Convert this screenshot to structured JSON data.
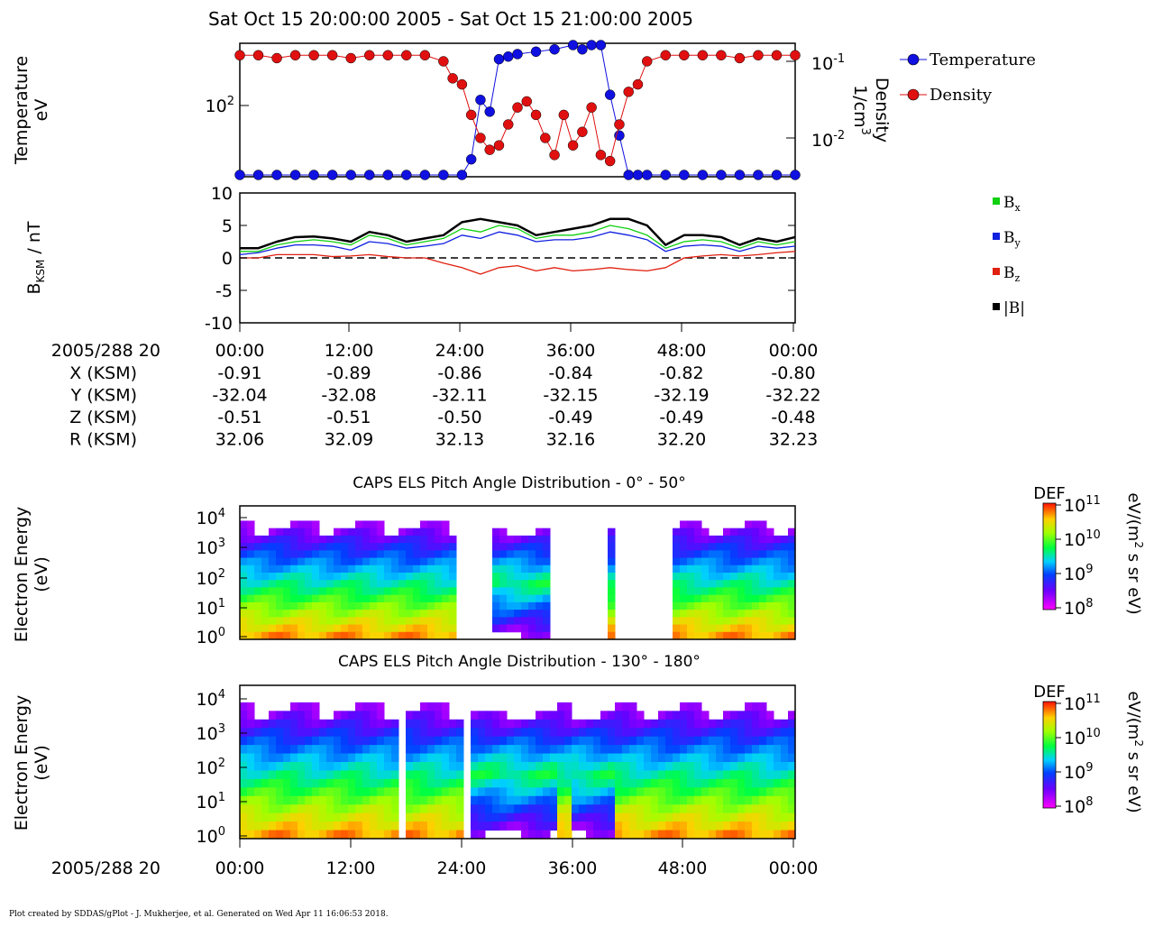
{
  "title": "Sat Oct 15 20:00:00 2005 - Sat Oct 15 21:00:00 2005",
  "footer": "Plot created by SDDAS/gPlot - J. Mukherjee, et al.  Generated on Wed Apr 11 16:06:53 2018.",
  "time_axis": {
    "label": "2005/288 20",
    "ticks": [
      "00:00",
      "12:00",
      "24:00",
      "36:00",
      "48:00",
      "00:00"
    ]
  },
  "ephemeris": [
    {
      "label": "X (KSM)",
      "values": [
        "-0.91",
        "-0.89",
        "-0.86",
        "-0.84",
        "-0.82",
        "-0.80"
      ]
    },
    {
      "label": "Y (KSM)",
      "values": [
        "-32.04",
        "-32.08",
        "-32.11",
        "-32.15",
        "-32.19",
        "-32.22"
      ]
    },
    {
      "label": "Z (KSM)",
      "values": [
        "-0.51",
        "-0.51",
        "-0.50",
        "-0.49",
        "-0.49",
        "-0.48"
      ]
    },
    {
      "label": "R (KSM)",
      "values": [
        "32.06",
        "32.09",
        "32.13",
        "32.16",
        "32.20",
        "32.23"
      ]
    }
  ],
  "colors": {
    "temperature": "#1010e0",
    "density": "#e01010",
    "bx": "#10d010",
    "by": "#1020e0",
    "bz": "#e02010",
    "btot": "#000000"
  },
  "chart_data": [
    {
      "type": "scatter",
      "ylabel_left": [
        "Temperature",
        "eV"
      ],
      "ylabel_right": [
        "Density",
        "1/cm",
        "3"
      ],
      "y_left_ticks": [
        {
          "base": "10",
          "exp": "2"
        }
      ],
      "y_right_ticks": [
        {
          "base": "10",
          "exp": "-1"
        },
        {
          "base": "10",
          "exp": "-2"
        }
      ],
      "legend": [
        "Temperature",
        "Density"
      ],
      "series": [
        {
          "name": "Temperature",
          "x": [
            0,
            2,
            4,
            6,
            8,
            10,
            12,
            14,
            16,
            18,
            20,
            22,
            24,
            25,
            26,
            27,
            28,
            29,
            30,
            32,
            34,
            36,
            37,
            38,
            39,
            40,
            41,
            42,
            43,
            44,
            46,
            48,
            50,
            52,
            54,
            56,
            58,
            60
          ],
          "y": [
            22,
            22,
            23,
            22,
            22,
            23,
            22,
            22,
            23,
            22,
            22,
            21,
            23,
            40,
            110,
            90,
            220,
            230,
            240,
            250,
            260,
            330,
            260,
            330,
            300,
            120,
            60,
            30,
            22,
            22,
            22,
            22,
            22,
            23,
            22,
            22,
            22,
            22
          ]
        },
        {
          "name": "Density",
          "x": [
            0,
            2,
            4,
            6,
            8,
            10,
            12,
            14,
            16,
            18,
            20,
            22,
            23,
            24,
            25,
            26,
            27,
            28,
            29,
            30,
            31,
            32,
            33,
            34,
            35,
            36,
            37,
            38,
            39,
            40,
            41,
            42,
            43,
            44,
            46,
            48,
            50,
            52,
            54,
            56,
            58,
            60
          ],
          "y": [
            0.12,
            0.12,
            0.11,
            0.12,
            0.12,
            0.12,
            0.11,
            0.12,
            0.12,
            0.12,
            0.12,
            0.1,
            0.06,
            0.05,
            0.02,
            0.01,
            0.007,
            0.008,
            0.015,
            0.025,
            0.03,
            0.02,
            0.01,
            0.006,
            0.02,
            0.008,
            0.012,
            0.025,
            0.006,
            0.005,
            0.015,
            0.04,
            0.05,
            0.1,
            0.12,
            0.12,
            0.12,
            0.12,
            0.11,
            0.12,
            0.12,
            0.12
          ]
        }
      ]
    },
    {
      "type": "line",
      "ylabel": "B",
      "ylabel_sub": "KSM",
      "ylabel_unit": " / nT",
      "ylim": [
        -10,
        10
      ],
      "yticks": [
        "10",
        "5",
        "0",
        "-5",
        "-10"
      ],
      "legend_subs": [
        "x",
        "y",
        "z"
      ],
      "legend_base": "B",
      "legend_abs": "|B|",
      "series": [
        {
          "name": "Bx",
          "x": [
            0,
            2,
            4,
            6,
            8,
            10,
            12,
            14,
            16,
            18,
            20,
            22,
            24,
            26,
            28,
            30,
            32,
            34,
            36,
            38,
            40,
            42,
            44,
            46,
            48,
            50,
            52,
            54,
            56,
            58,
            60
          ],
          "y": [
            1,
            1,
            2,
            2.5,
            2.8,
            2.5,
            2,
            3.5,
            3,
            2,
            2.5,
            3,
            4.5,
            4,
            5,
            4.5,
            3,
            3.5,
            3.5,
            4,
            5,
            4.5,
            3.5,
            1.5,
            2.5,
            2.8,
            2.5,
            1.5,
            2.5,
            2,
            2.5
          ]
        },
        {
          "name": "By",
          "x": [
            0,
            2,
            4,
            6,
            8,
            10,
            12,
            14,
            16,
            18,
            20,
            22,
            24,
            26,
            28,
            30,
            32,
            34,
            36,
            38,
            40,
            42,
            44,
            46,
            48,
            50,
            52,
            54,
            56,
            58,
            60
          ],
          "y": [
            0.5,
            0.8,
            1.5,
            2,
            2,
            1.8,
            1.2,
            2.5,
            2.2,
            1.5,
            1.8,
            2.2,
            3.5,
            3,
            4,
            3.5,
            2.5,
            2.8,
            2.8,
            3.2,
            4,
            3.5,
            2.8,
            1,
            1.8,
            2,
            1.8,
            1,
            1.8,
            1.5,
            1.8
          ]
        },
        {
          "name": "Bz",
          "x": [
            0,
            2,
            4,
            6,
            8,
            10,
            12,
            14,
            16,
            18,
            20,
            22,
            24,
            26,
            28,
            30,
            32,
            34,
            36,
            38,
            40,
            42,
            44,
            46,
            48,
            50,
            52,
            54,
            56,
            58,
            60
          ],
          "y": [
            0,
            0,
            0.5,
            0.5,
            0.5,
            0.2,
            0.3,
            0.5,
            0.2,
            0,
            0,
            -0.8,
            -1.5,
            -2.5,
            -1.5,
            -1.2,
            -2,
            -1.5,
            -2,
            -1.8,
            -1.5,
            -1.8,
            -2,
            -1.5,
            0,
            0.3,
            0.5,
            0.3,
            0.5,
            0.8,
            1
          ]
        },
        {
          "name": "|B|",
          "x": [
            0,
            2,
            4,
            6,
            8,
            10,
            12,
            14,
            16,
            18,
            20,
            22,
            24,
            26,
            28,
            30,
            32,
            34,
            36,
            38,
            40,
            42,
            44,
            46,
            48,
            50,
            52,
            54,
            56,
            58,
            60
          ],
          "y": [
            1.5,
            1.5,
            2.5,
            3.2,
            3.3,
            3,
            2.5,
            4,
            3.5,
            2.5,
            3,
            3.5,
            5.5,
            6,
            5.5,
            5,
            3.5,
            4,
            4.5,
            5,
            6,
            6,
            5,
            2,
            3.5,
            3.5,
            3.2,
            2,
            3,
            2.5,
            3.2
          ]
        }
      ]
    },
    {
      "type": "heatmap",
      "title": "CAPS ELS Pitch Angle Distribution - 0° - 50°",
      "ylabel": [
        "Electron Energy",
        "(eV)"
      ],
      "yticks": [
        {
          "base": "10",
          "exp": "4"
        },
        {
          "base": "10",
          "exp": "3"
        },
        {
          "base": "10",
          "exp": "2"
        },
        {
          "base": "10",
          "exp": "1"
        },
        {
          "base": "10",
          "exp": "0"
        }
      ],
      "colorbar": {
        "label": "DEF",
        "unit": [
          "eV/(m",
          "2",
          " s sr eV)"
        ],
        "ticks": [
          {
            "base": "10",
            "exp": "11"
          },
          {
            "base": "10",
            "exp": "10"
          },
          {
            "base": "10",
            "exp": "9"
          },
          {
            "base": "10",
            "exp": "8"
          }
        ]
      }
    },
    {
      "type": "heatmap",
      "title": "CAPS ELS Pitch Angle Distribution - 130° - 180°",
      "ylabel": [
        "Electron Energy",
        "(eV)"
      ],
      "yticks": [
        {
          "base": "10",
          "exp": "4"
        },
        {
          "base": "10",
          "exp": "3"
        },
        {
          "base": "10",
          "exp": "2"
        },
        {
          "base": "10",
          "exp": "1"
        },
        {
          "base": "10",
          "exp": "0"
        }
      ],
      "colorbar": {
        "label": "DEF",
        "unit": [
          "eV/(m",
          "2",
          " s sr eV)"
        ],
        "ticks": [
          {
            "base": "10",
            "exp": "11"
          },
          {
            "base": "10",
            "exp": "10"
          },
          {
            "base": "10",
            "exp": "9"
          },
          {
            "base": "10",
            "exp": "8"
          }
        ]
      }
    }
  ]
}
